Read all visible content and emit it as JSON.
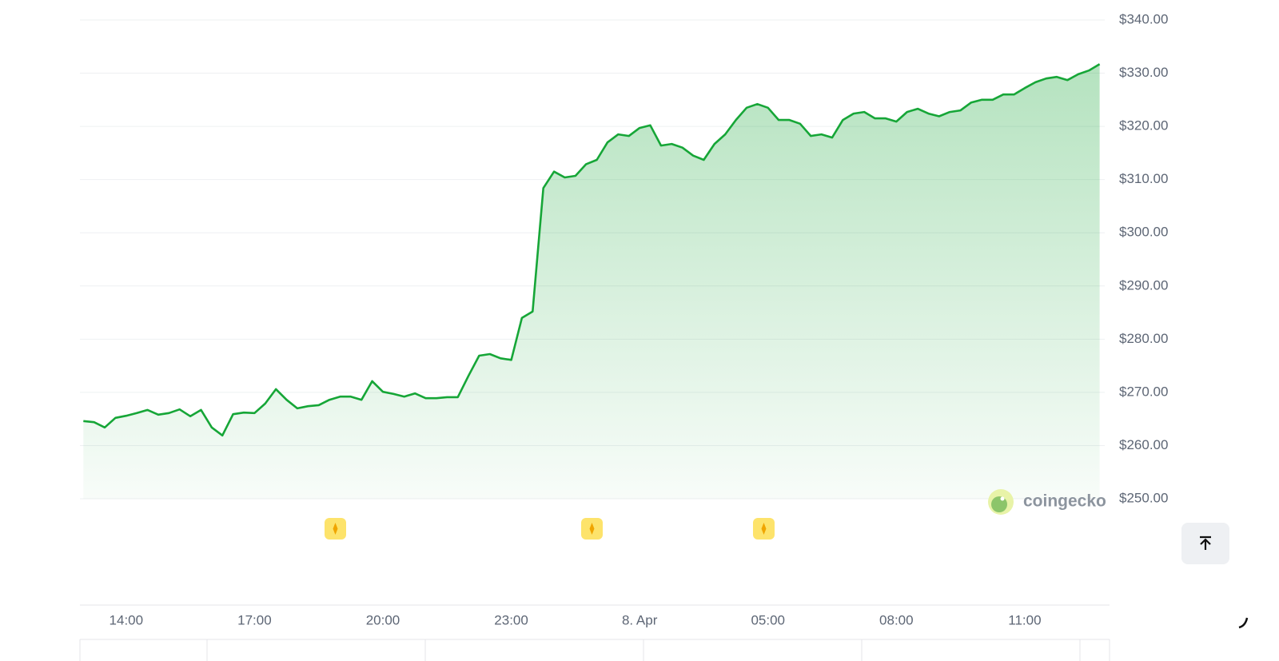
{
  "chart_data": {
    "type": "area",
    "brand": "coingecko",
    "color": "#16a637",
    "x": [
      13,
      13.25,
      13.5,
      13.75,
      14,
      14.25,
      14.5,
      14.75,
      15,
      15.25,
      15.5,
      15.75,
      16,
      16.25,
      16.5,
      16.75,
      17,
      17.25,
      17.5,
      17.75,
      18,
      18.25,
      18.5,
      18.75,
      19,
      19.25,
      19.5,
      19.75,
      20,
      20.25,
      20.5,
      20.75,
      21,
      21.25,
      21.5,
      21.75,
      22,
      22.25,
      22.5,
      22.75,
      23,
      23.25,
      23.5,
      23.75,
      24,
      24.25,
      24.5,
      24.75,
      25,
      25.25,
      25.5,
      25.75,
      26,
      26.25,
      26.5,
      26.75,
      27,
      27.25,
      27.5,
      27.75,
      28,
      28.25,
      28.5,
      28.75,
      29,
      29.25,
      29.5,
      29.75,
      30,
      30.25,
      30.5,
      30.75,
      31,
      31.25,
      31.5,
      31.75,
      32,
      32.25,
      32.5,
      32.75,
      33,
      33.25,
      33.5,
      33.75,
      34,
      34.25,
      34.5,
      34.75,
      35,
      35.25,
      35.5,
      35.75,
      36,
      36.25,
      36.5,
      36.75
    ],
    "values": [
      264.6,
      264.4,
      263.4,
      265.2,
      265.6,
      266.1,
      266.7,
      265.8,
      266.1,
      266.8,
      265.5,
      266.7,
      263.4,
      261.9,
      265.9,
      266.2,
      266.1,
      267.9,
      270.6,
      268.6,
      267,
      267.4,
      267.6,
      268.6,
      269.2,
      269.2,
      268.6,
      272.1,
      270.1,
      269.7,
      269.2,
      269.8,
      268.9,
      268.9,
      269.1,
      269.1,
      273.1,
      276.9,
      277.2,
      276.4,
      276.1,
      284,
      285.2,
      308.4,
      311.5,
      310.4,
      310.7,
      312.9,
      313.7,
      317,
      318.5,
      318.2,
      319.7,
      320.2,
      316.4,
      316.7,
      316,
      314.5,
      313.7,
      316.7,
      318.5,
      321.2,
      323.5,
      324.2,
      323.5,
      321.2,
      321.2,
      320.5,
      318.2,
      318.5,
      317.9,
      321.2,
      322.4,
      322.7,
      321.5,
      321.5,
      320.9,
      322.7,
      323.3,
      322.4,
      321.9,
      322.7,
      323,
      324.5,
      325,
      325,
      326,
      326,
      327.2,
      328.3,
      329,
      329.3,
      328.7,
      329.8,
      330.5,
      331.7
    ],
    "xlim": [
      12.92,
      36.87
    ],
    "xticks": [
      {
        "value": 14,
        "label": "14:00"
      },
      {
        "value": 17,
        "label": "17:00"
      },
      {
        "value": 20,
        "label": "20:00"
      },
      {
        "value": 23,
        "label": "23:00"
      },
      {
        "value": 26,
        "label": "8. Apr"
      },
      {
        "value": 29,
        "label": "05:00"
      },
      {
        "value": 32,
        "label": "08:00"
      },
      {
        "value": 35,
        "label": "11:00"
      }
    ],
    "ylim": [
      250,
      340
    ],
    "yticks": [
      {
        "value": 250,
        "label": "$250.00"
      },
      {
        "value": 260,
        "label": "$260.00"
      },
      {
        "value": 270,
        "label": "$270.00"
      },
      {
        "value": 280,
        "label": "$280.00"
      },
      {
        "value": 290,
        "label": "$290.00"
      },
      {
        "value": 300,
        "label": "$300.00"
      },
      {
        "value": 310,
        "label": "$310.00"
      },
      {
        "value": 320,
        "label": "$320.00"
      },
      {
        "value": 330,
        "label": "$330.00"
      },
      {
        "value": 340,
        "label": "$340.00"
      }
    ],
    "grid": true
  }
}
